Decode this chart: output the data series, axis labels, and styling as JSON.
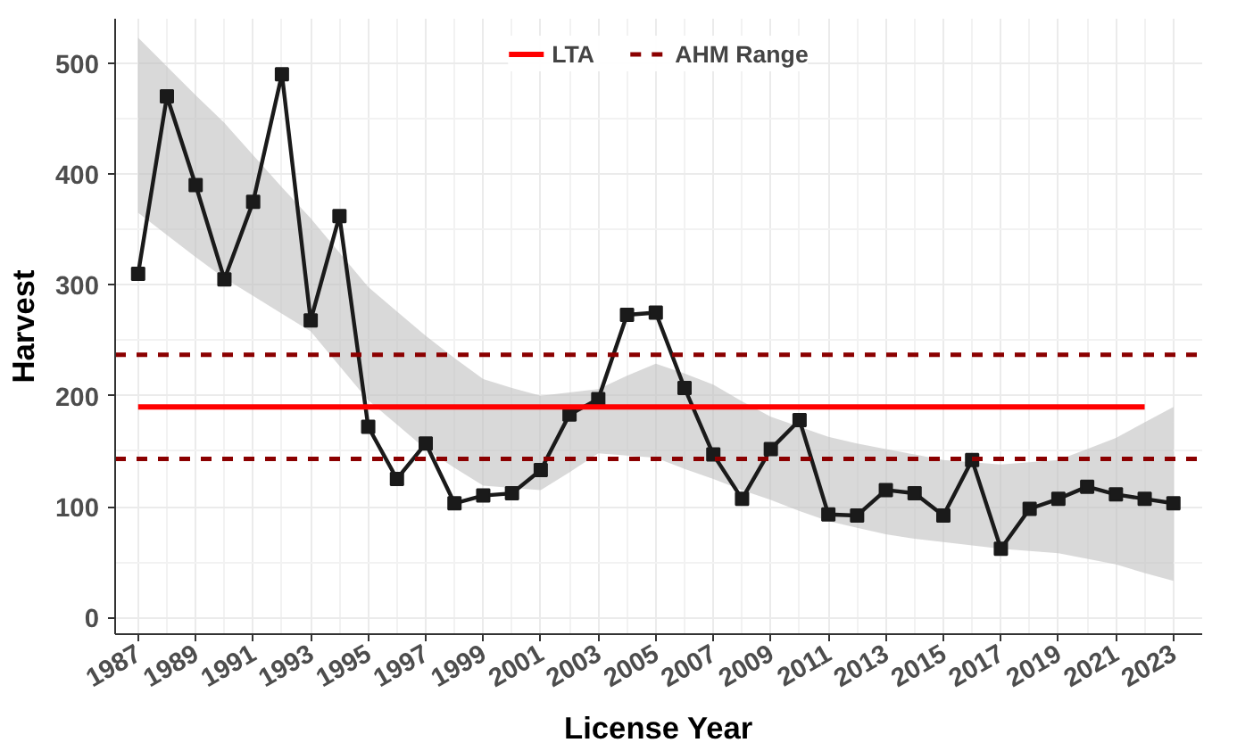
{
  "chart_data": {
    "type": "line",
    "xlabel": "License Year",
    "ylabel": "Harvest",
    "x": [
      1987,
      1988,
      1989,
      1990,
      1991,
      1992,
      1993,
      1994,
      1995,
      1996,
      1997,
      1998,
      1999,
      2000,
      2001,
      2002,
      2003,
      2004,
      2005,
      2006,
      2007,
      2008,
      2009,
      2010,
      2011,
      2012,
      2013,
      2014,
      2015,
      2016,
      2017,
      2018,
      2019,
      2020,
      2021,
      2022,
      2023
    ],
    "series": [
      {
        "color": "#1a1a1a",
        "marker": "square",
        "values": [
          310,
          470,
          390,
          305,
          375,
          490,
          268,
          362,
          172,
          125,
          157,
          103,
          110,
          112,
          133,
          183,
          197,
          273,
          275,
          207,
          147,
          107,
          152,
          178,
          93,
          92,
          115,
          112,
          92,
          142,
          62,
          98,
          107,
          118,
          111,
          107,
          103
        ],
        "upper": [
          523,
          497,
          471,
          446,
          417,
          388,
          360,
          329,
          298,
          276,
          254,
          234,
          215,
          207,
          200,
          203,
          206,
          218,
          229,
          220,
          210,
          195,
          181,
          172,
          163,
          157,
          152,
          147,
          142,
          140,
          138,
          140,
          142,
          152,
          162,
          176,
          190
        ],
        "lower": [
          365,
          345,
          325,
          306,
          290,
          274,
          258,
          227,
          196,
          174,
          152,
          135,
          119,
          117,
          115,
          131,
          148,
          146,
          144,
          134,
          125,
          115,
          106,
          96,
          87,
          81,
          75,
          71,
          68,
          65,
          62,
          60,
          58,
          53,
          48,
          40,
          33
        ]
      },
      {
        "name": "LTA",
        "color": "#ff0000",
        "x": [
          1987,
          2022
        ],
        "values": [
          190,
          190
        ],
        "marker": "none"
      }
    ],
    "ref_lines": [
      {
        "axis": "y",
        "value": 237,
        "label": "AHM Range",
        "color": "#8b0000",
        "line_style": "dashed"
      },
      {
        "axis": "y",
        "value": 143,
        "color": "#8b0000",
        "line_style": "dashed"
      }
    ],
    "xlim": [
      1986.2,
      2024
    ],
    "ylim": [
      -15,
      540
    ],
    "xticks": [
      1987,
      1989,
      1991,
      1993,
      1995,
      1997,
      1999,
      2001,
      2003,
      2005,
      2007,
      2009,
      2011,
      2013,
      2015,
      2017,
      2019,
      2021,
      2023
    ],
    "yticks": [
      0,
      100,
      200,
      300,
      400,
      500
    ],
    "grid": true,
    "legend": "top"
  }
}
